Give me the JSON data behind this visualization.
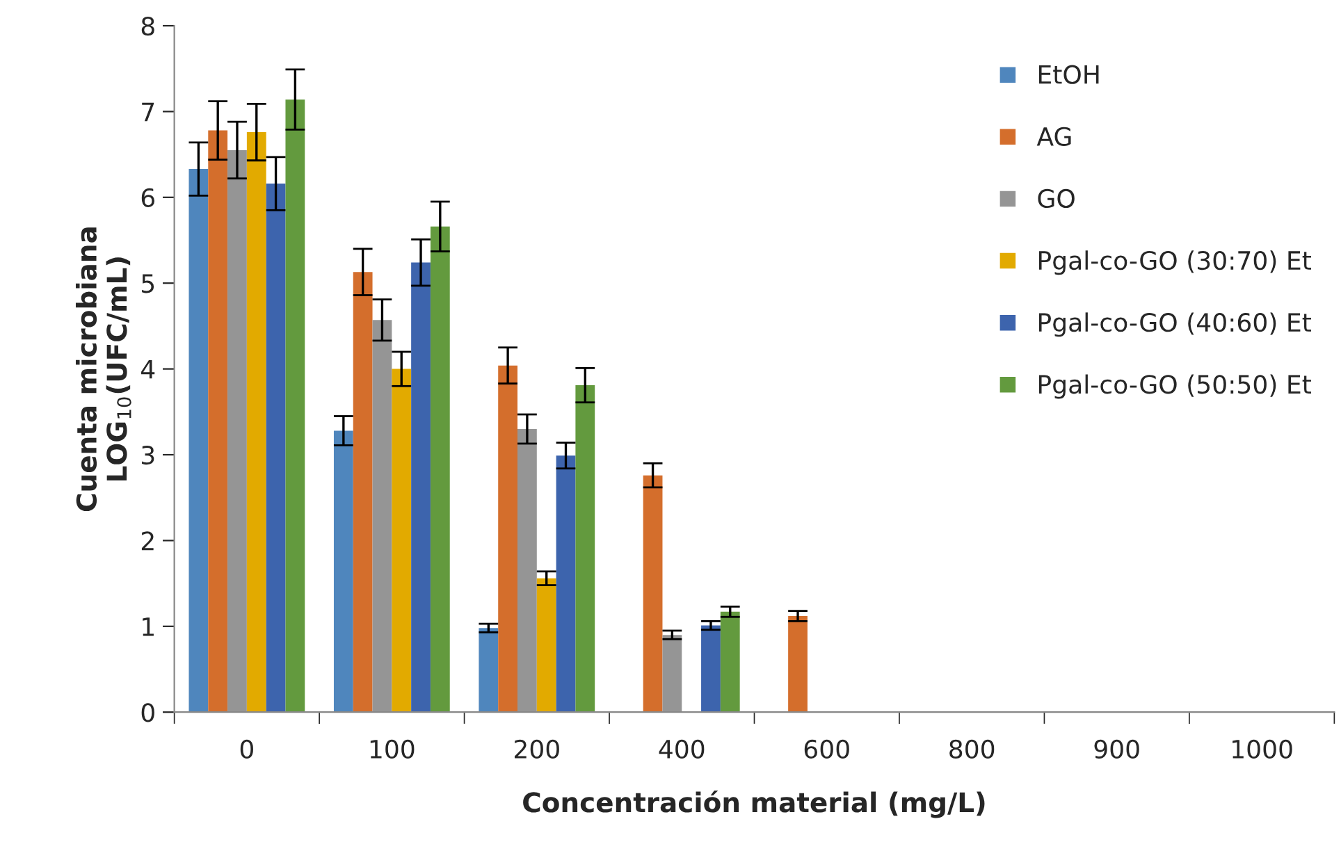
{
  "chart_data": {
    "type": "bar",
    "xlabel": "Concentración material (mg/L)",
    "ylabel": "Cuenta microbiana\nLOG$_{10}$(UFC/mL)",
    "categories": [
      "0",
      "100",
      "200",
      "400",
      "600",
      "800",
      "900",
      "1000"
    ],
    "ylim": [
      0,
      8
    ],
    "yticks": [
      0,
      1,
      2,
      3,
      4,
      5,
      6,
      7,
      8
    ],
    "grid": false,
    "legend": "right",
    "series": [
      {
        "name": "EtOH",
        "color": "#4f86bd",
        "values": [
          6.33,
          3.28,
          0.98,
          0,
          0,
          0,
          0,
          0
        ],
        "errors": [
          0.31,
          0.17,
          0.05,
          null,
          null,
          null,
          null,
          null
        ]
      },
      {
        "name": "AG",
        "color": "#d46e2c",
        "values": [
          6.78,
          5.13,
          4.04,
          2.76,
          1.12,
          0,
          0,
          0
        ],
        "errors": [
          0.34,
          0.27,
          0.21,
          0.14,
          0.06,
          null,
          null,
          null
        ]
      },
      {
        "name": "GO",
        "color": "#959595",
        "values": [
          6.55,
          4.57,
          3.3,
          0.9,
          0,
          0,
          0,
          0
        ],
        "errors": [
          0.33,
          0.24,
          0.17,
          0.05,
          null,
          null,
          null,
          null
        ]
      },
      {
        "name": "Pgal-co-GO (30:70) Et",
        "color": "#e2aa00",
        "values": [
          6.76,
          4.0,
          1.56,
          0,
          0,
          0,
          0,
          0
        ],
        "errors": [
          0.33,
          0.2,
          0.08,
          null,
          null,
          null,
          null,
          null
        ]
      },
      {
        "name": "Pgal-co-GO (40:60) Et",
        "color": "#3d64ad",
        "values": [
          6.16,
          5.24,
          2.99,
          1.01,
          0,
          0,
          0,
          0
        ],
        "errors": [
          0.31,
          0.27,
          0.15,
          0.05,
          null,
          null,
          null,
          null
        ]
      },
      {
        "name": "Pgal-co-GO (50:50) Et",
        "color": "#639a3e",
        "values": [
          7.14,
          5.66,
          3.81,
          1.17,
          0,
          0,
          0,
          0
        ],
        "errors": [
          0.35,
          0.29,
          0.2,
          0.06,
          null,
          null,
          null,
          null
        ]
      }
    ]
  }
}
